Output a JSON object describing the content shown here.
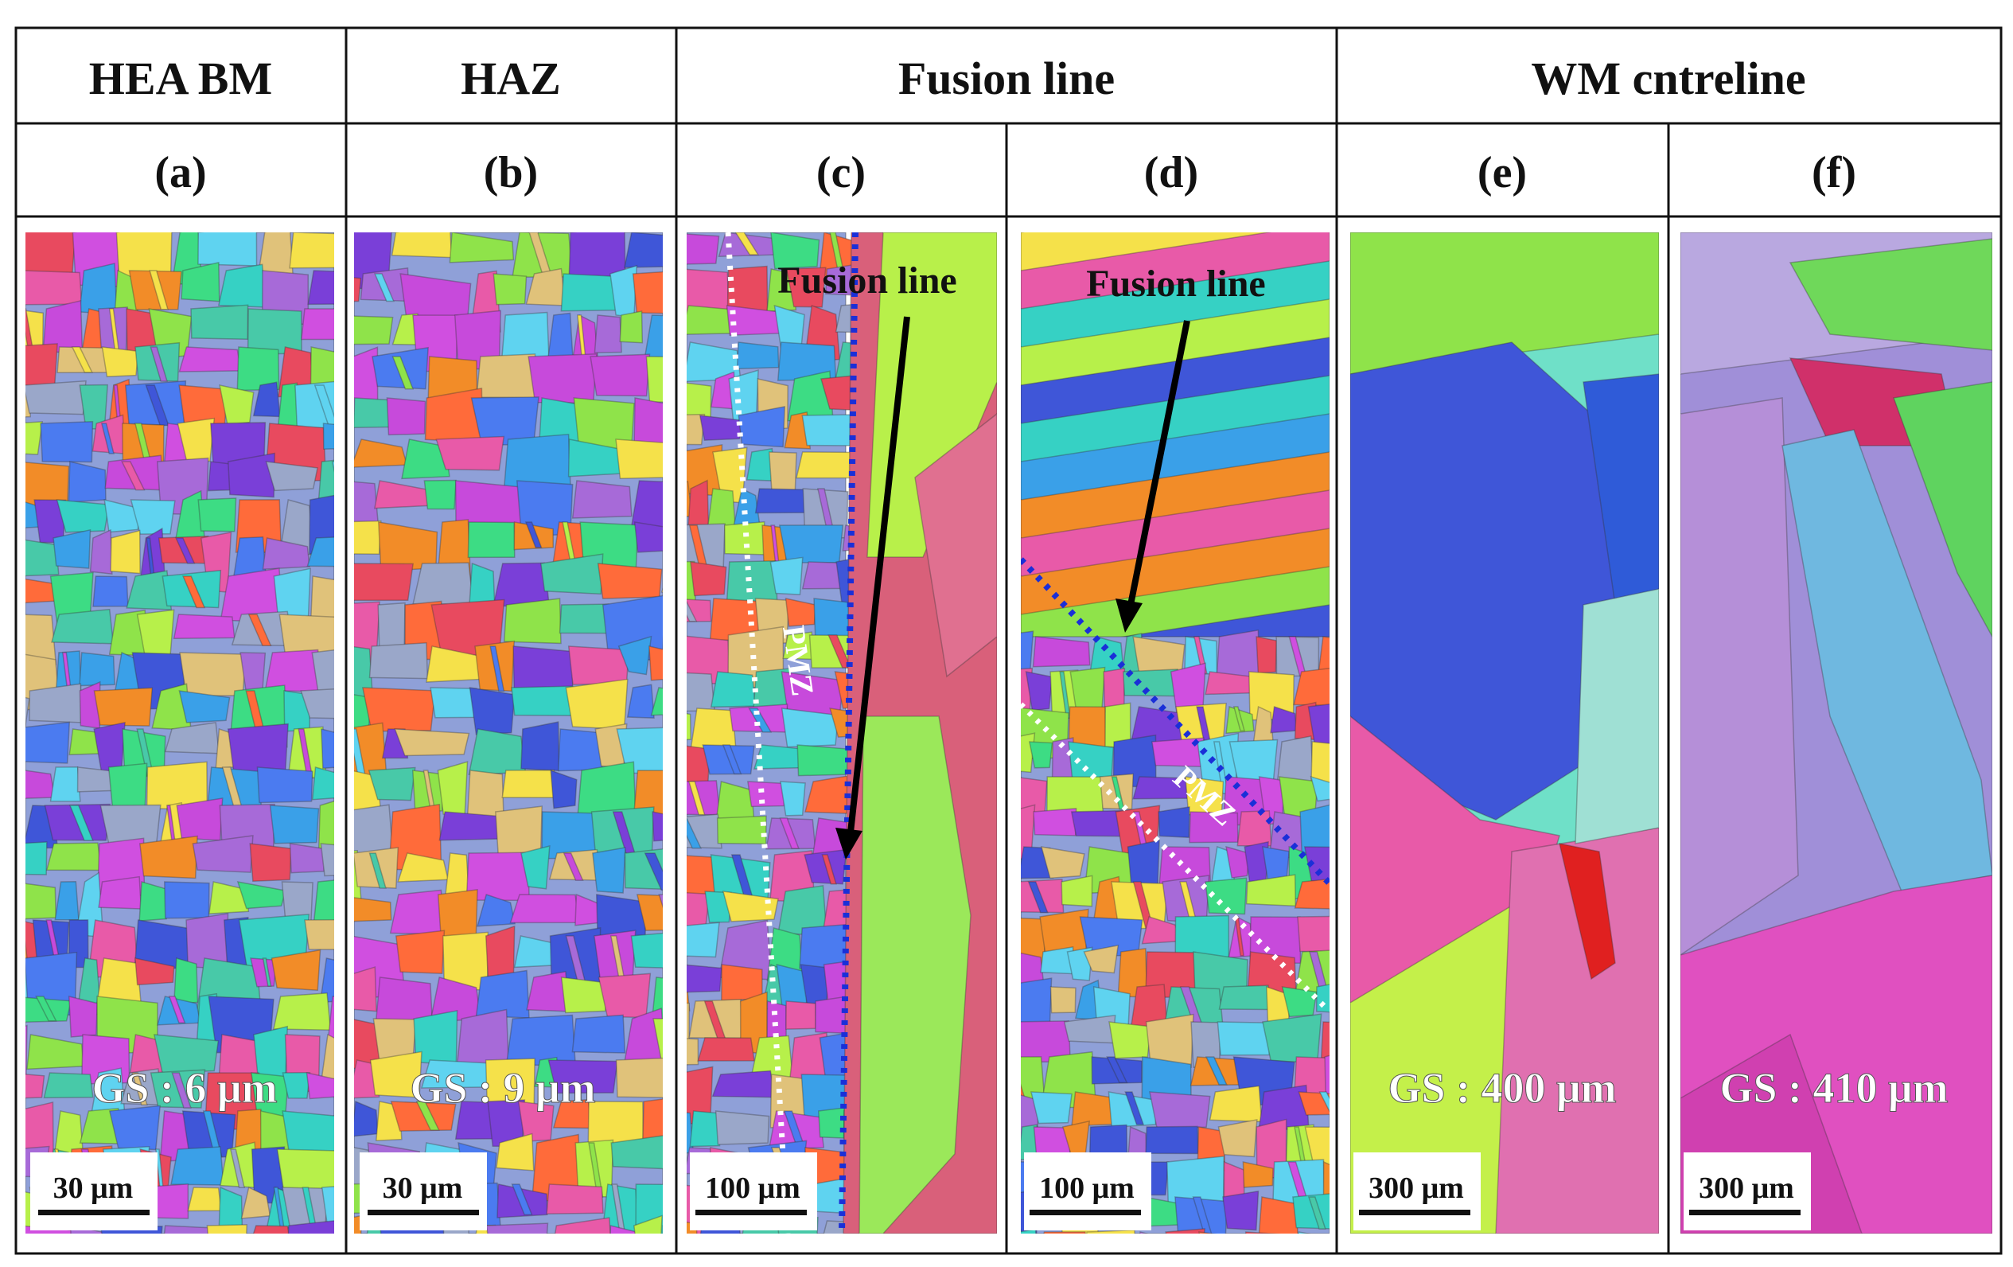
{
  "headers": {
    "row1": [
      "HEA BM",
      "HAZ",
      "Fusion line",
      "WM cntreline"
    ],
    "row2": [
      "(a)",
      "(b)",
      "(c)",
      "(d)",
      "(e)",
      "(f)"
    ]
  },
  "panels": [
    {
      "id": "a",
      "grain_size": "GS :  6 μm",
      "scale_bar": "30 μm"
    },
    {
      "id": "b",
      "grain_size": "GS : 9 μm",
      "scale_bar": "30 μm"
    },
    {
      "id": "c",
      "annotation": "Fusion line",
      "zone_label": "PMZ",
      "scale_bar": "100 μm"
    },
    {
      "id": "d",
      "annotation": "Fusion line",
      "zone_label": "PMZ",
      "scale_bar": "100 μm"
    },
    {
      "id": "e",
      "grain_size": "GS : 400 μm",
      "scale_bar": "300 μm"
    },
    {
      "id": "f",
      "grain_size": "GS : 410 μm",
      "scale_bar": "300 μm"
    }
  ],
  "colors": {
    "fusion_line_dotted": "#1a2fd8",
    "pmz_boundary_dotted": "#ffffff",
    "arrow": "#000000"
  }
}
